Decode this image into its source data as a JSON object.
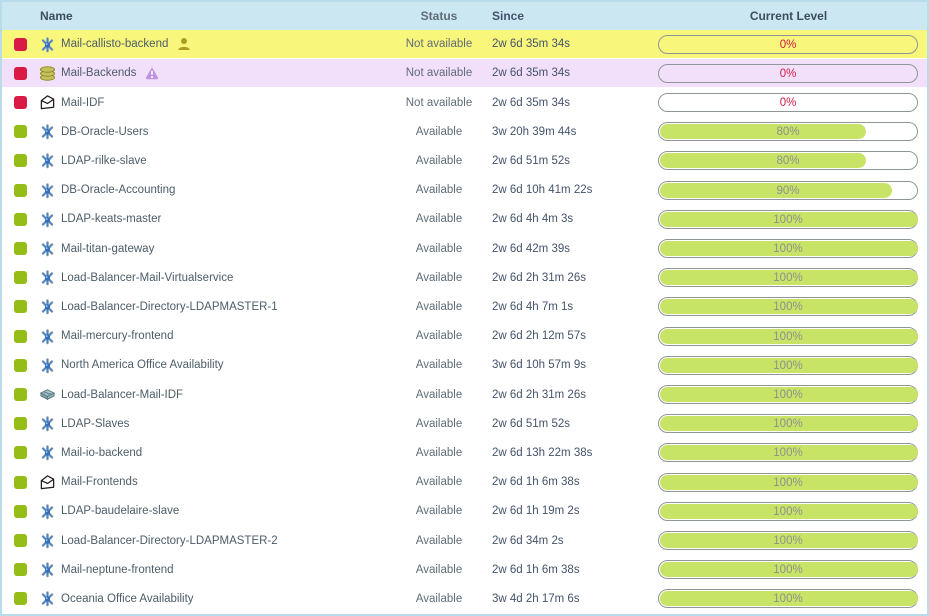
{
  "table": {
    "columns": {
      "name": "Name",
      "status": "Status",
      "since": "Since",
      "level": "Current Level"
    },
    "rows": [
      {
        "name": "Mail-callisto-backend",
        "icon": "service",
        "badge": "person",
        "state": "critical",
        "bg": "yellow",
        "status": "Not available",
        "since": "2w 6d 35m 34s",
        "level": 0,
        "level_label": "0%"
      },
      {
        "name": "Mail-Backends",
        "icon": "database",
        "badge": "warning",
        "state": "critical",
        "bg": "purple",
        "status": "Not available",
        "since": "2w 6d 35m 34s",
        "level": 0,
        "level_label": "0%"
      },
      {
        "name": "Mail-IDF",
        "icon": "envelope",
        "badge": "",
        "state": "critical",
        "bg": "",
        "status": "Not available",
        "since": "2w 6d 35m 34s",
        "level": 0,
        "level_label": "0%"
      },
      {
        "name": "DB-Oracle-Users",
        "icon": "service",
        "badge": "",
        "state": "ok",
        "bg": "",
        "status": "Available",
        "since": "3w 20h 39m 44s",
        "level": 80,
        "level_label": "80%"
      },
      {
        "name": "LDAP-rilke-slave",
        "icon": "service",
        "badge": "",
        "state": "ok",
        "bg": "",
        "status": "Available",
        "since": "2w 6d 51m 52s",
        "level": 80,
        "level_label": "80%"
      },
      {
        "name": "DB-Oracle-Accounting",
        "icon": "service",
        "badge": "",
        "state": "ok",
        "bg": "",
        "status": "Available",
        "since": "2w 6d 10h 41m 22s",
        "level": 90,
        "level_label": "90%"
      },
      {
        "name": "LDAP-keats-master",
        "icon": "service",
        "badge": "",
        "state": "ok",
        "bg": "",
        "status": "Available",
        "since": "2w 6d 4h 4m 3s",
        "level": 100,
        "level_label": "100%"
      },
      {
        "name": "Mail-titan-gateway",
        "icon": "service",
        "badge": "",
        "state": "ok",
        "bg": "",
        "status": "Available",
        "since": "2w 6d 42m 39s",
        "level": 100,
        "level_label": "100%"
      },
      {
        "name": "Load-Balancer-Mail-Virtualservice",
        "icon": "service",
        "badge": "",
        "state": "ok",
        "bg": "",
        "status": "Available",
        "since": "2w 6d 2h 31m 26s",
        "level": 100,
        "level_label": "100%"
      },
      {
        "name": "Load-Balancer-Directory-LDAPMASTER-1",
        "icon": "service",
        "badge": "",
        "state": "ok",
        "bg": "",
        "status": "Available",
        "since": "2w 6d 4h 7m 1s",
        "level": 100,
        "level_label": "100%"
      },
      {
        "name": "Mail-mercury-frontend",
        "icon": "service",
        "badge": "",
        "state": "ok",
        "bg": "",
        "status": "Available",
        "since": "2w 6d 2h 12m 57s",
        "level": 100,
        "level_label": "100%"
      },
      {
        "name": "North America Office Availability",
        "icon": "service",
        "badge": "",
        "state": "ok",
        "bg": "",
        "status": "Available",
        "since": "3w 6d 10h 57m 9s",
        "level": 100,
        "level_label": "100%"
      },
      {
        "name": "Load-Balancer-Mail-IDF",
        "icon": "switch",
        "badge": "",
        "state": "ok",
        "bg": "",
        "status": "Available",
        "since": "2w 6d 2h 31m 26s",
        "level": 100,
        "level_label": "100%"
      },
      {
        "name": "LDAP-Slaves",
        "icon": "service",
        "badge": "",
        "state": "ok",
        "bg": "",
        "status": "Available",
        "since": "2w 6d 51m 52s",
        "level": 100,
        "level_label": "100%"
      },
      {
        "name": "Mail-io-backend",
        "icon": "service",
        "badge": "",
        "state": "ok",
        "bg": "",
        "status": "Available",
        "since": "2w 6d 13h 22m 38s",
        "level": 100,
        "level_label": "100%"
      },
      {
        "name": "Mail-Frontends",
        "icon": "envelope",
        "badge": "",
        "state": "ok",
        "bg": "",
        "status": "Available",
        "since": "2w 6d 1h 6m 38s",
        "level": 100,
        "level_label": "100%"
      },
      {
        "name": "LDAP-baudelaire-slave",
        "icon": "service",
        "badge": "",
        "state": "ok",
        "bg": "",
        "status": "Available",
        "since": "2w 6d 1h 19m 2s",
        "level": 100,
        "level_label": "100%"
      },
      {
        "name": "Load-Balancer-Directory-LDAPMASTER-2",
        "icon": "service",
        "badge": "",
        "state": "ok",
        "bg": "",
        "status": "Available",
        "since": "2w 6d 34m 2s",
        "level": 100,
        "level_label": "100%"
      },
      {
        "name": "Mail-neptune-frontend",
        "icon": "service",
        "badge": "",
        "state": "ok",
        "bg": "",
        "status": "Available",
        "since": "2w 6d 1h 6m 38s",
        "level": 100,
        "level_label": "100%"
      },
      {
        "name": "Oceania Office Availability",
        "icon": "service",
        "badge": "",
        "state": "ok",
        "bg": "",
        "status": "Available",
        "since": "3w 4d 2h 17m 6s",
        "level": 100,
        "level_label": "100%"
      }
    ]
  },
  "colors": {
    "header_bg": "#cbe7f2",
    "row_not_available_yellow": "#f9f67c",
    "row_group_purple": "#f2e0fa",
    "critical_red": "#d91a45",
    "ok_green": "#94bd17",
    "bar_fill_green": "#c8e466",
    "zero_label_red": "#d11c45"
  }
}
